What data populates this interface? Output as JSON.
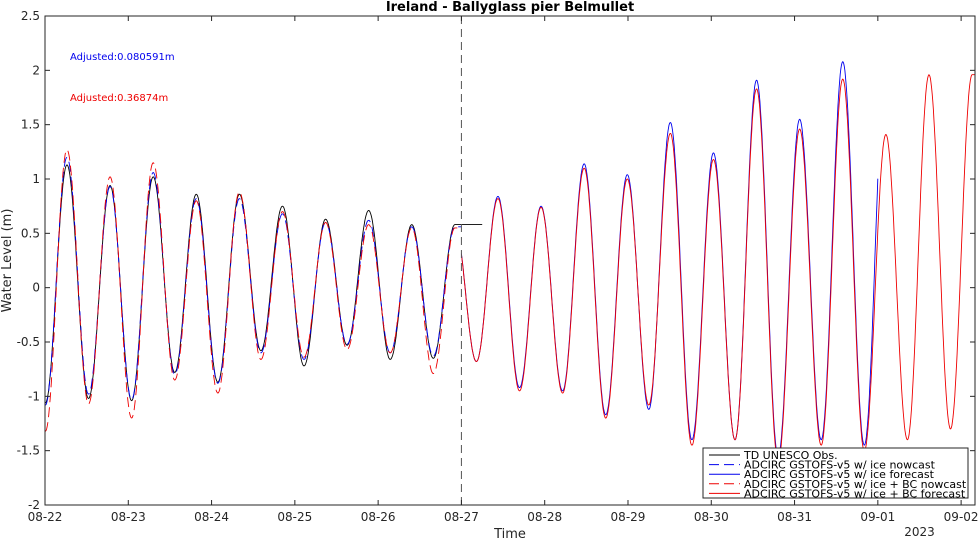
{
  "chart_data": {
    "type": "line",
    "title": "Ireland - Ballyglass pier Belmullet",
    "xlabel": "Time",
    "ylabel": "Water Level (m)",
    "x_tick_labels": [
      "08-22",
      "08-23",
      "08-24",
      "08-25",
      "08-26",
      "08-27",
      "08-28",
      "08-29",
      "08-30",
      "08-31",
      "09-01",
      "09-02"
    ],
    "x_year_label": "2023",
    "xlim": [
      "2023-08-22 00:00",
      "2023-09-02 04:00"
    ],
    "ylim": [
      -2,
      2.5
    ],
    "y_ticks": [
      -2,
      -1.5,
      -1,
      -0.5,
      0,
      0.5,
      1,
      1.5,
      2,
      2.5
    ],
    "y_tick_labels": [
      "-2",
      "-1.5",
      "-1",
      "-0.5",
      "0",
      "0.5",
      "1",
      "1.5",
      "2",
      "2.5"
    ],
    "grid": false,
    "nowcast_forecast_divider": "2023-08-27 00:00",
    "annotations": [
      {
        "text": "Adjusted:0.080591m",
        "color": "#0000ee"
      },
      {
        "text": "Adjusted:0.36874m",
        "color": "#ee0000"
      }
    ],
    "legend": {
      "position": "bottom-right"
    },
    "tide_period_hours": 12.42,
    "series": [
      {
        "name": "TD UNESCO Obs.",
        "color": "#000000",
        "dash": "solid",
        "x_range": [
          "2023-08-22 00:00",
          "2023-08-27 06:00"
        ],
        "peaks": [
          1.06,
          1.13,
          0.94,
          1.02,
          0.86,
          0.86,
          0.75,
          0.63,
          0.71,
          0.58
        ],
        "troughs": [
          -1.06,
          -1.02,
          -1.04,
          -0.78,
          -0.87,
          -0.58,
          -0.72,
          -0.53,
          -0.66,
          -0.65
        ]
      },
      {
        "name": "ADCIRC GSTOFS-v5 w/ ice nowcast",
        "color": "#0000ee",
        "dash": "dashed",
        "x_range": [
          "2023-08-22 00:00",
          "2023-08-27 00:00"
        ],
        "peaks": [
          1.05,
          1.2,
          0.93,
          1.06,
          0.82,
          0.82,
          0.68,
          0.6,
          0.62,
          0.56
        ],
        "troughs": [
          -1.08,
          -0.98,
          -1.03,
          -0.8,
          -0.88,
          -0.6,
          -0.66,
          -0.52,
          -0.6,
          -0.63
        ]
      },
      {
        "name": "ADCIRC GSTOFS-v5 w/ ice forecast",
        "color": "#0000ee",
        "dash": "solid",
        "x_range": [
          "2023-08-27 00:00",
          "2023-09-01 00:00"
        ],
        "peaks": [
          0.58,
          0.84,
          0.75,
          1.14,
          1.04,
          1.52,
          1.24,
          1.91,
          1.55,
          2.08
        ],
        "troughs": [
          -0.68,
          -0.92,
          -0.95,
          -1.17,
          -1.12,
          -1.4,
          -1.4,
          -1.55,
          -1.4,
          -1.45
        ]
      },
      {
        "name": "ADCIRC GSTOFS-v5 w/ ice + BC nowcast",
        "color": "#ee0000",
        "dash": "dashed",
        "x_range": [
          "2023-08-22 00:00",
          "2023-08-27 00:00"
        ],
        "peaks": [
          1.15,
          1.27,
          1.02,
          1.15,
          0.8,
          0.88,
          0.7,
          0.6,
          0.58,
          0.55
        ],
        "troughs": [
          -1.32,
          -1.07,
          -1.2,
          -0.85,
          -0.97,
          -0.66,
          -0.64,
          -0.57,
          -0.6,
          -0.79
        ]
      },
      {
        "name": "ADCIRC GSTOFS-v5 w/ ice + BC forecast",
        "color": "#ee0000",
        "dash": "solid",
        "x_range": [
          "2023-08-27 00:00",
          "2023-09-02 04:00"
        ],
        "peaks": [
          0.57,
          0.82,
          0.74,
          1.1,
          1.0,
          1.42,
          1.18,
          1.83,
          1.46,
          1.92,
          1.41,
          1.96
        ],
        "troughs": [
          -0.68,
          -0.95,
          -0.97,
          -1.2,
          -1.08,
          -1.45,
          -1.4,
          -1.6,
          -1.45,
          -1.5,
          -1.4,
          -1.3
        ]
      }
    ]
  }
}
